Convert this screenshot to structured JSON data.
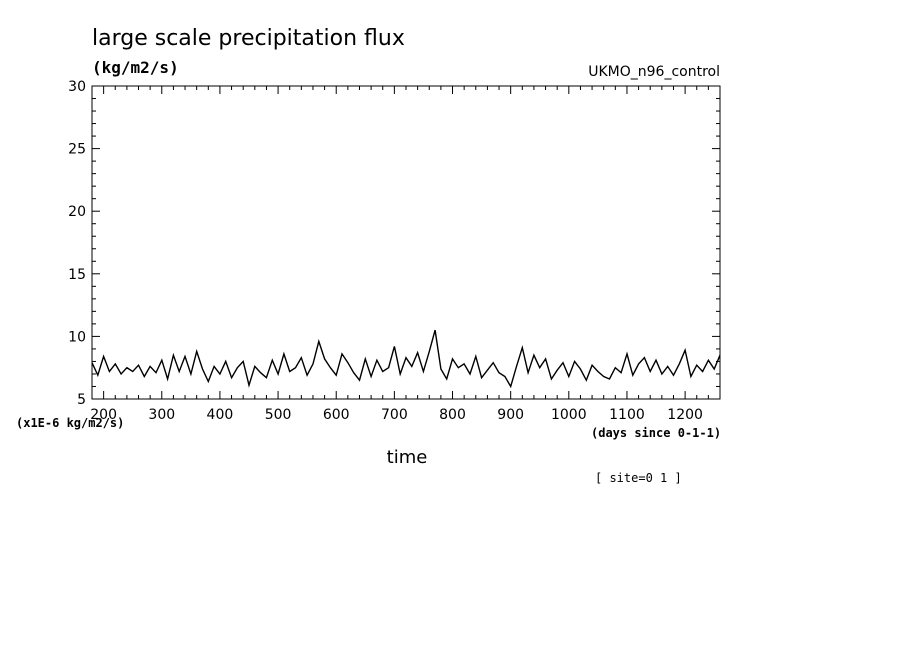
{
  "chart_data": {
    "type": "line",
    "title": "large scale precipitation flux",
    "subtitle": "(kg/m2/s)",
    "source_label": "UKMO_n96_control",
    "y_unit_label": "(x1E-6 kg/m2/s)",
    "x_unit_label": "(days since 0-1-1)",
    "xlabel": "time",
    "annotation": "[ site=0 1 ]",
    "xlim": [
      180,
      1260
    ],
    "ylim": [
      5,
      30
    ],
    "xticks": [
      200,
      300,
      400,
      500,
      600,
      700,
      800,
      900,
      1000,
      1100,
      1200
    ],
    "yticks": [
      5,
      10,
      15,
      20,
      25,
      30
    ],
    "grid": false,
    "legend": "none",
    "line_color": "#000000",
    "series": [
      {
        "x": [
          180,
          190,
          200,
          210,
          220,
          230,
          240,
          250,
          260,
          270,
          280,
          290,
          300,
          310,
          320,
          330,
          340,
          350,
          360,
          370,
          380,
          390,
          400,
          410,
          420,
          430,
          440,
          450,
          460,
          470,
          480,
          490,
          500,
          510,
          520,
          530,
          540,
          550,
          560,
          570,
          580,
          590,
          600,
          610,
          620,
          630,
          640,
          650,
          660,
          670,
          680,
          690,
          700,
          710,
          720,
          730,
          740,
          750,
          760,
          770,
          780,
          790,
          800,
          810,
          820,
          830,
          840,
          850,
          860,
          870,
          880,
          890,
          900,
          910,
          920,
          930,
          940,
          950,
          960,
          970,
          980,
          990,
          1000,
          1010,
          1020,
          1030,
          1040,
          1050,
          1060,
          1070,
          1080,
          1090,
          1100,
          1110,
          1120,
          1130,
          1140,
          1150,
          1160,
          1170,
          1180,
          1190,
          1200,
          1210,
          1220,
          1230,
          1240,
          1250,
          1260
        ],
        "values": [
          7.9,
          6.9,
          8.4,
          7.2,
          7.8,
          7.0,
          7.5,
          7.2,
          7.7,
          6.8,
          7.6,
          7.1,
          8.1,
          6.6,
          8.5,
          7.2,
          8.4,
          7.0,
          8.8,
          7.4,
          6.4,
          7.6,
          7.0,
          8.0,
          6.7,
          7.5,
          8.0,
          6.1,
          7.6,
          7.1,
          6.7,
          8.1,
          7.0,
          8.6,
          7.2,
          7.5,
          8.3,
          6.9,
          7.8,
          9.6,
          8.2,
          7.5,
          6.9,
          8.6,
          7.9,
          7.1,
          6.5,
          8.2,
          6.8,
          8.1,
          7.2,
          7.5,
          9.2,
          7.0,
          8.3,
          7.6,
          8.7,
          7.2,
          8.8,
          10.5,
          7.4,
          6.6,
          8.2,
          7.5,
          7.8,
          7.0,
          8.4,
          6.7,
          7.3,
          7.9,
          7.1,
          6.8,
          6.0,
          7.6,
          9.1,
          7.1,
          8.5,
          7.5,
          8.2,
          6.6,
          7.3,
          7.9,
          6.8,
          8.0,
          7.4,
          6.5,
          7.7,
          7.2,
          6.8,
          6.6,
          7.5,
          7.1,
          8.6,
          6.9,
          7.8,
          8.3,
          7.2,
          8.1,
          7.0,
          7.6,
          6.9,
          7.8,
          8.9,
          6.8,
          7.7,
          7.2,
          8.1,
          7.4,
          8.5
        ]
      }
    ]
  }
}
